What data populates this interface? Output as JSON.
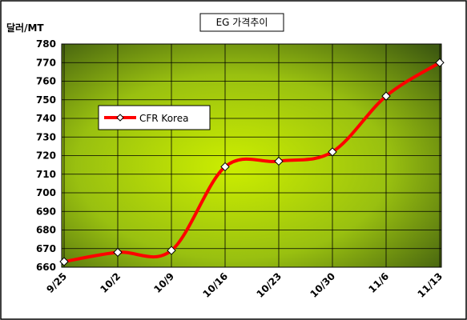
{
  "chart_data": {
    "type": "line",
    "title": "EG 가격추이",
    "y_label": "달러/MT",
    "categories": [
      "9/25",
      "10/2",
      "10/9",
      "10/16",
      "10/23",
      "10/30",
      "11/6",
      "11/13"
    ],
    "series": [
      {
        "name": "CFR Korea",
        "color": "#ff0000",
        "values": [
          663,
          668,
          669,
          714,
          717,
          722,
          752,
          770
        ]
      }
    ],
    "ylim": [
      660,
      780
    ],
    "yticks": [
      660,
      670,
      680,
      690,
      700,
      710,
      720,
      730,
      740,
      750,
      760,
      770,
      780
    ],
    "grid": true
  }
}
